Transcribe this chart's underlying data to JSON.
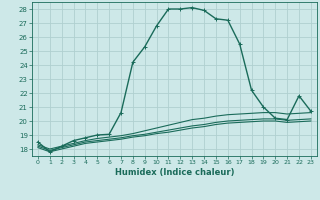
{
  "title": "",
  "xlabel": "Humidex (Indice chaleur)",
  "xlim": [
    -0.5,
    23.5
  ],
  "ylim": [
    17.5,
    28.5
  ],
  "yticks": [
    18,
    19,
    20,
    21,
    22,
    23,
    24,
    25,
    26,
    27,
    28
  ],
  "xticks": [
    0,
    1,
    2,
    3,
    4,
    5,
    6,
    7,
    8,
    9,
    10,
    11,
    12,
    13,
    14,
    15,
    16,
    17,
    18,
    19,
    20,
    21,
    22,
    23
  ],
  "background_color": "#cde8e8",
  "grid_color": "#b0d0d0",
  "line_color": "#1a6b5a",
  "lines": [
    {
      "x": [
        0,
        1,
        2,
        3,
        4,
        5,
        6,
        7,
        8,
        9,
        10,
        11,
        12,
        13,
        14,
        15,
        16,
        17,
        18,
        19,
        20,
        21,
        22,
        23
      ],
      "y": [
        18.5,
        17.8,
        18.2,
        18.6,
        18.8,
        19.0,
        19.05,
        20.6,
        24.2,
        25.3,
        26.8,
        28.0,
        28.0,
        28.1,
        27.9,
        27.3,
        27.2,
        25.5,
        22.2,
        21.0,
        20.2,
        20.1,
        21.8,
        20.7
      ],
      "marker": true,
      "lw": 1.0
    },
    {
      "x": [
        0,
        1,
        2,
        3,
        4,
        5,
        6,
        7,
        8,
        9,
        10,
        11,
        12,
        13,
        14,
        15,
        16,
        17,
        18,
        19,
        20,
        21,
        22,
        23
      ],
      "y": [
        18.3,
        18.0,
        18.2,
        18.4,
        18.6,
        18.75,
        18.85,
        18.95,
        19.1,
        19.3,
        19.5,
        19.7,
        19.9,
        20.1,
        20.2,
        20.35,
        20.45,
        20.5,
        20.55,
        20.6,
        20.6,
        20.5,
        20.55,
        20.6
      ],
      "marker": false,
      "lw": 0.8
    },
    {
      "x": [
        0,
        1,
        2,
        3,
        4,
        5,
        6,
        7,
        8,
        9,
        10,
        11,
        12,
        13,
        14,
        15,
        16,
        17,
        18,
        19,
        20,
        21,
        22,
        23
      ],
      "y": [
        18.2,
        17.9,
        18.1,
        18.3,
        18.5,
        18.6,
        18.7,
        18.8,
        18.95,
        19.05,
        19.2,
        19.35,
        19.5,
        19.65,
        19.75,
        19.9,
        20.0,
        20.05,
        20.1,
        20.15,
        20.15,
        20.05,
        20.1,
        20.15
      ],
      "marker": false,
      "lw": 0.8
    },
    {
      "x": [
        0,
        1,
        2,
        3,
        4,
        5,
        6,
        7,
        8,
        9,
        10,
        11,
        12,
        13,
        14,
        15,
        16,
        17,
        18,
        19,
        20,
        21,
        22,
        23
      ],
      "y": [
        18.1,
        17.8,
        18.0,
        18.2,
        18.4,
        18.5,
        18.6,
        18.7,
        18.85,
        18.95,
        19.1,
        19.2,
        19.35,
        19.5,
        19.6,
        19.75,
        19.85,
        19.9,
        19.95,
        20.0,
        20.0,
        19.9,
        19.95,
        20.0
      ],
      "marker": false,
      "lw": 0.8
    }
  ]
}
